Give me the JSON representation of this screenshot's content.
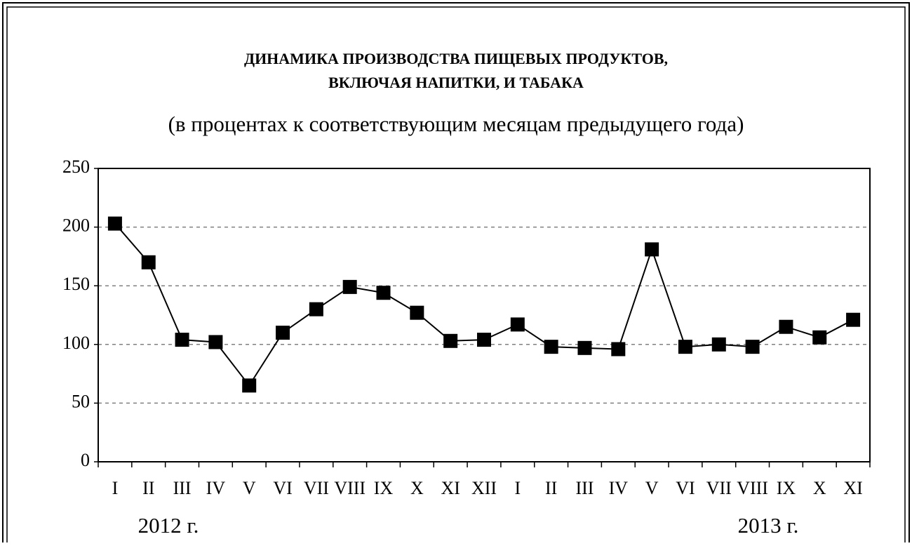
{
  "chart_data": {
    "type": "line",
    "title": [
      "ДИНАМИКА ПРОИЗВОДСТВА ПИЩЕВЫХ ПРОДУКТОВ,",
      "ВКЛЮЧАЯ НАПИТКИ, И ТАБАКА"
    ],
    "subtitle": "(в процентах к соответствующим месяцам предыдущего года)",
    "categories": [
      "I",
      "II",
      "III",
      "IV",
      "V",
      "VI",
      "VII",
      "VIII",
      "IX",
      "X",
      "XI",
      "XII",
      "I",
      "II",
      "III",
      "IV",
      "V",
      "VI",
      "VII",
      "VIII",
      "IX",
      "X",
      "XI"
    ],
    "series": [
      {
        "color": "#000000",
        "values": [
          203,
          170,
          104,
          102,
          65,
          110,
          130,
          149,
          144,
          127,
          103,
          104,
          117,
          98,
          97,
          96,
          181,
          98,
          100,
          98,
          115,
          106,
          121
        ]
      }
    ],
    "year_labels": [
      "2012 г.",
      "2013 г."
    ],
    "ylim": [
      0,
      250
    ],
    "yticks": [
      0,
      50,
      100,
      150,
      200,
      250
    ],
    "grid": true
  }
}
